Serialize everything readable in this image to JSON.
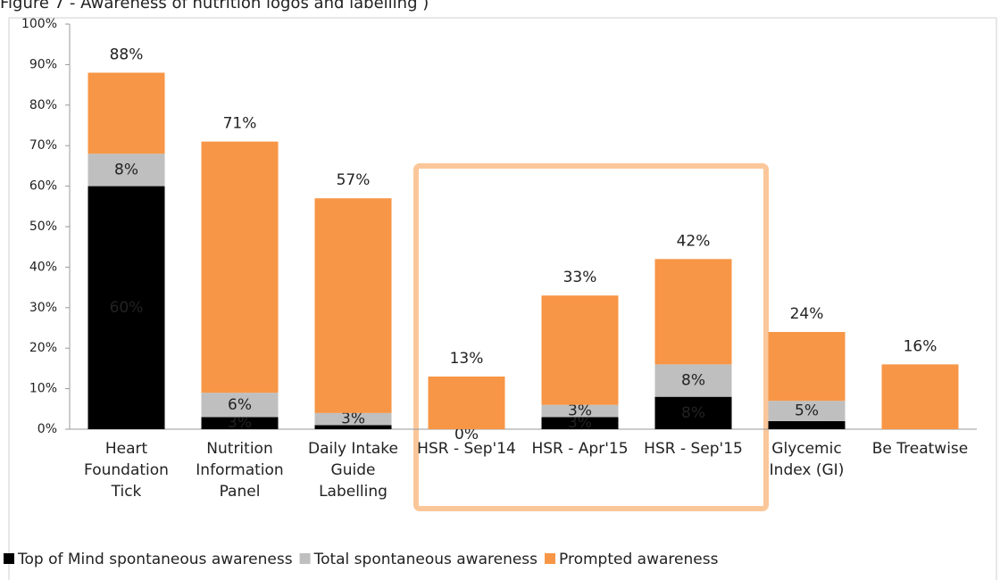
{
  "chart_data": {
    "type": "bar",
    "stacked": true,
    "title": "Figure 7 - Awareness of nutrition logos and labelling )",
    "categories": [
      [
        "Heart",
        "Foundation",
        "Tick"
      ],
      [
        "Nutrition",
        "Information",
        "Panel"
      ],
      [
        "Daily Intake",
        "Guide",
        "Labelling"
      ],
      [
        "HSR - Sep'14"
      ],
      [
        "HSR - Apr'15"
      ],
      [
        "HSR - Sep'15"
      ],
      [
        "Glycemic",
        "Index (GI)"
      ],
      [
        "Be Treatwise"
      ]
    ],
    "series": [
      {
        "name": "Top of Mind spontaneous awareness",
        "color": "#000000",
        "values": [
          60,
          3,
          1,
          0,
          3,
          8,
          2,
          0
        ],
        "value_labels": [
          "60%",
          "3%",
          null,
          "0%",
          "3%",
          "8%",
          null,
          null
        ]
      },
      {
        "name": "Total spontaneous awareness",
        "color": "#bfbfbf",
        "values": [
          8,
          6,
          3,
          0,
          3,
          8,
          5,
          0
        ],
        "value_labels": [
          "8%",
          "6%",
          "3%",
          null,
          "3%",
          "8%",
          "5%",
          null
        ]
      },
      {
        "name": "Prompted awareness",
        "color": "#f79646",
        "values": [
          20,
          62,
          53,
          13,
          27,
          26,
          17,
          16
        ]
      }
    ],
    "totals": [
      88,
      71,
      57,
      13,
      33,
      42,
      24,
      16
    ],
    "total_labels": [
      "88%",
      "71%",
      "57%",
      "13%",
      "33%",
      "42%",
      "24%",
      "16%"
    ],
    "ylim": [
      0,
      100
    ],
    "yticks": [
      {
        "value": 0,
        "label": "0%"
      },
      {
        "value": 10,
        "label": "10%"
      },
      {
        "value": 20,
        "label": "20%"
      },
      {
        "value": 30,
        "label": "30%"
      },
      {
        "value": 40,
        "label": "40%"
      },
      {
        "value": 50,
        "label": "50%"
      },
      {
        "value": 60,
        "label": "60%"
      },
      {
        "value": 70,
        "label": "70%"
      },
      {
        "value": 80,
        "label": "80%"
      },
      {
        "value": 90,
        "label": "90%"
      },
      {
        "value": 100,
        "label": "100%"
      }
    ],
    "grid": false,
    "legend": "bottom"
  }
}
